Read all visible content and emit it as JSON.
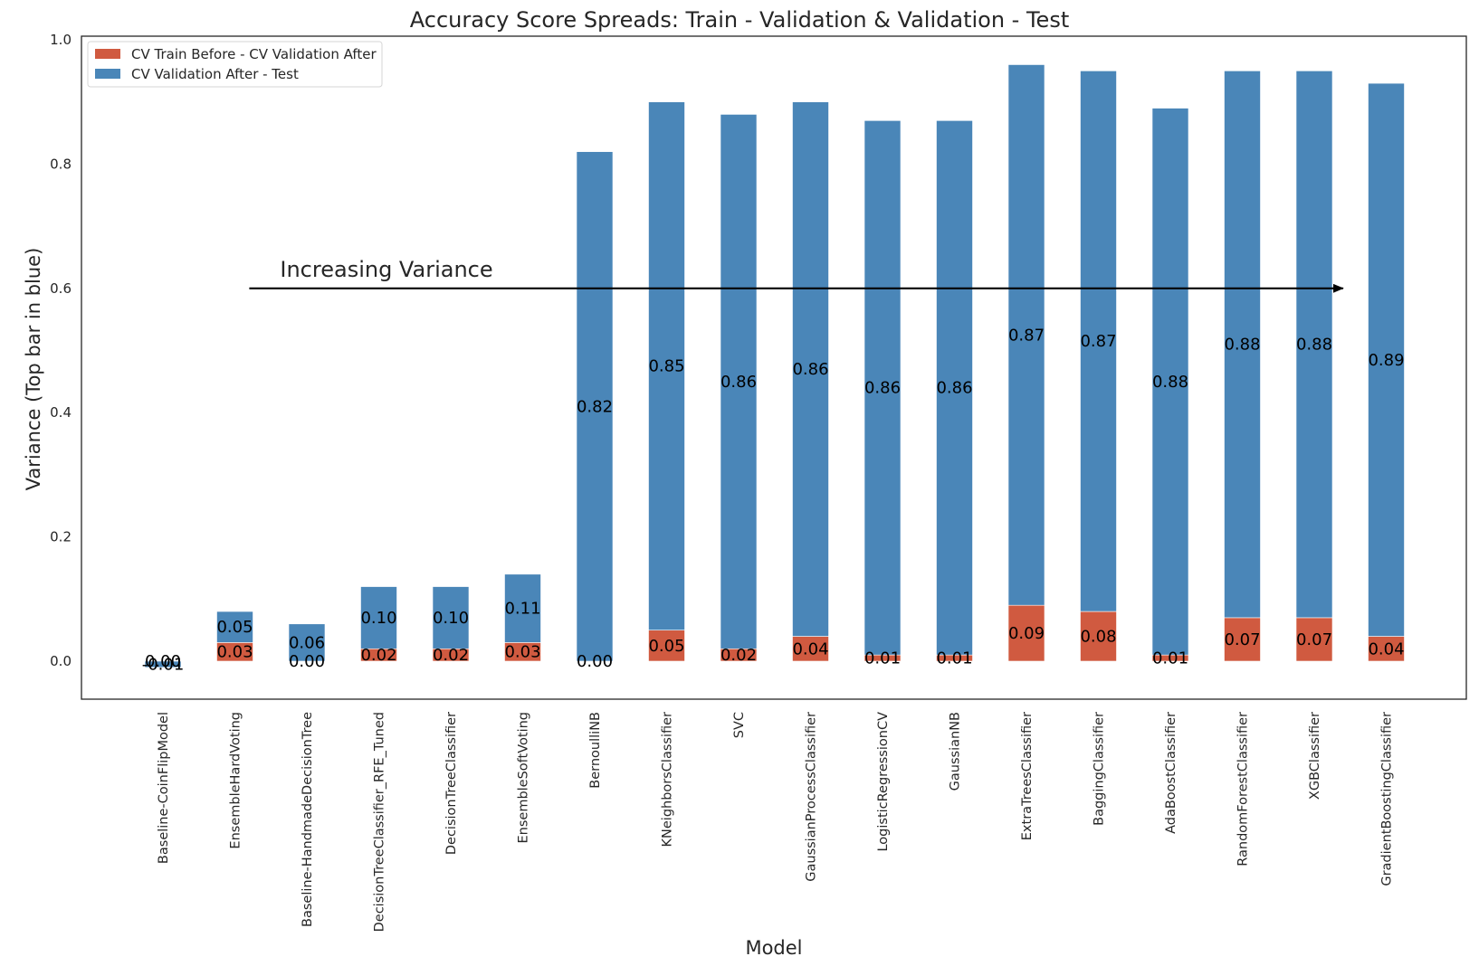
{
  "chart_data": {
    "type": "bar",
    "stacked": true,
    "title": "Accuracy Score Spreads: Train - Validation & Validation - Test",
    "xlabel": "Model",
    "ylabel": "Variance (Top bar in blue)",
    "ylim": [
      -0.06,
      1.01
    ],
    "yticks": [
      "0.0",
      "0.2",
      "0.4",
      "0.6",
      "0.8",
      "1.0"
    ],
    "grid": false,
    "legend_placement": "top-left",
    "categories": [
      "Baseline-CoinFlipModel",
      "EnsembleHardVoting",
      "Baseline-HandmadeDecisionTree",
      "DecisionTreeClassifier_RFE_Tuned",
      "DecisionTreeClassifier",
      "EnsembleSoftVoting",
      "BernoulliNB",
      "KNeighborsClassifier",
      "SVC",
      "GaussianProcessClassifier",
      "LogisticRegressionCV",
      "GaussianNB",
      "ExtraTreesClassifier",
      "BaggingClassifier",
      "AdaBoostClassifier",
      "RandomForestClassifier",
      "XGBClassifier",
      "GradientBoostingClassifier"
    ],
    "series": [
      {
        "name": "CV Train Before - CV Validation After",
        "color": "#d05a40",
        "values": [
          0.0,
          0.03,
          0.0,
          0.02,
          0.02,
          0.03,
          0.0,
          0.05,
          0.02,
          0.04,
          0.01,
          0.01,
          0.09,
          0.08,
          0.01,
          0.07,
          0.07,
          0.04
        ],
        "labels": [
          "0.00",
          "0.03",
          "0.00",
          "0.02",
          "0.02",
          "0.03",
          "0.00",
          "0.05",
          "0.02",
          "0.04",
          "0.01",
          "0.01",
          "0.09",
          "0.08",
          "0.01",
          "0.07",
          "0.07",
          "0.04"
        ]
      },
      {
        "name": "CV Validation After - Test",
        "color": "#4a86b8",
        "values": [
          -0.01,
          0.05,
          0.06,
          0.1,
          0.1,
          0.11,
          0.82,
          0.85,
          0.86,
          0.86,
          0.86,
          0.86,
          0.87,
          0.87,
          0.88,
          0.88,
          0.88,
          0.89
        ],
        "labels": [
          "-0.01",
          "0.05",
          "0.06",
          "0.10",
          "0.10",
          "0.11",
          "0.82",
          "0.85",
          "0.86",
          "0.86",
          "0.86",
          "0.86",
          "0.87",
          "0.87",
          "0.88",
          "0.88",
          "0.88",
          "0.89"
        ]
      }
    ],
    "annotations": [
      {
        "text": "Increasing Variance",
        "arrow_from": [
          1.2,
          0.6
        ],
        "arrow_to": [
          16.4,
          0.6
        ],
        "arrow_color": "#000000"
      }
    ]
  }
}
